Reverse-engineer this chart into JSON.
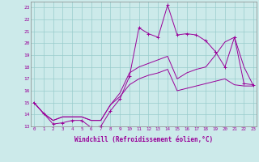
{
  "xlabel": "Windchill (Refroidissement éolien,°C)",
  "bg_color": "#cceaea",
  "line_color": "#990099",
  "grid_color": "#99cccc",
  "x_data": [
    0,
    1,
    2,
    3,
    4,
    5,
    6,
    7,
    8,
    9,
    10,
    11,
    12,
    13,
    14,
    15,
    16,
    17,
    18,
    19,
    20,
    21,
    22,
    23
  ],
  "main_line": [
    15.0,
    14.1,
    13.2,
    13.3,
    13.5,
    13.5,
    12.9,
    13.0,
    14.3,
    15.3,
    17.2,
    21.3,
    20.8,
    20.5,
    23.2,
    20.7,
    20.8,
    20.7,
    20.2,
    19.3,
    18.0,
    20.5,
    16.6,
    16.5
  ],
  "trend1": [
    15.0,
    14.1,
    13.5,
    13.8,
    13.8,
    13.8,
    13.5,
    13.5,
    14.8,
    15.8,
    17.5,
    18.0,
    18.3,
    18.6,
    18.9,
    17.0,
    17.5,
    17.8,
    18.0,
    19.0,
    20.1,
    20.5,
    18.0,
    16.4
  ],
  "trend2": [
    15.0,
    14.1,
    13.5,
    13.8,
    13.8,
    13.8,
    13.5,
    13.5,
    14.8,
    15.5,
    16.5,
    17.0,
    17.3,
    17.5,
    17.8,
    16.0,
    16.2,
    16.4,
    16.6,
    16.8,
    17.0,
    16.5,
    16.4,
    16.4
  ],
  "ylim": [
    13,
    23.5
  ],
  "yticks": [
    13,
    14,
    15,
    16,
    17,
    18,
    19,
    20,
    21,
    22,
    23
  ],
  "xticks": [
    0,
    1,
    2,
    3,
    4,
    5,
    6,
    7,
    8,
    9,
    10,
    11,
    12,
    13,
    14,
    15,
    16,
    17,
    18,
    19,
    20,
    21,
    22,
    23
  ],
  "figsize": [
    3.2,
    2.0
  ],
  "dpi": 100
}
